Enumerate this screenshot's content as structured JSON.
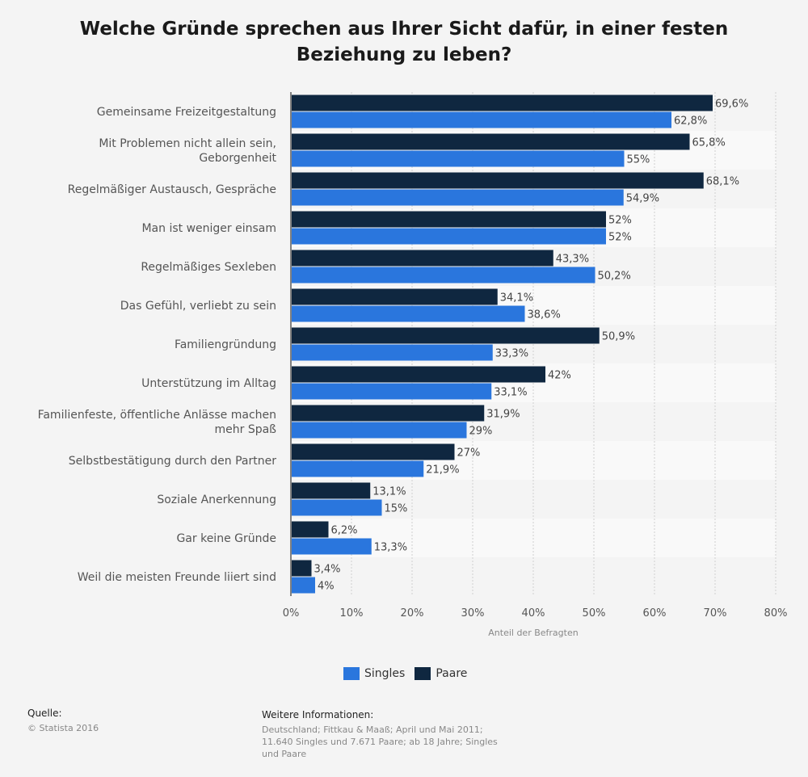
{
  "title": "Welche Gründe sprechen aus Ihrer Sicht dafür, in einer festen Beziehung zu leben?",
  "colors": {
    "singles": "#2a76dd",
    "paare": "#0f2740",
    "background": "#f4f4f4",
    "band": "#f9f9f9"
  },
  "chart_data": {
    "type": "bar",
    "orientation": "horizontal",
    "categories": [
      [
        "Gemeinsame Freizeitgestaltung"
      ],
      [
        "Mit Problemen nicht allein sein,",
        "Geborgenheit"
      ],
      [
        "Regelmäßiger Austausch, Gespräche"
      ],
      [
        "Man ist weniger einsam"
      ],
      [
        "Regelmäßiges Sexleben"
      ],
      [
        "Das Gefühl, verliebt zu sein"
      ],
      [
        "Familiengründung"
      ],
      [
        "Unterstützung im Alltag"
      ],
      [
        "Familienfeste, öffentliche Anlässe machen",
        "mehr Spaß"
      ],
      [
        "Selbstbestätigung durch den Partner"
      ],
      [
        "Soziale Anerkennung"
      ],
      [
        "Gar keine Gründe"
      ],
      [
        "Weil die meisten Freunde liiert sind"
      ]
    ],
    "series": [
      {
        "name": "Paare",
        "color": "#0f2740",
        "values": [
          69.6,
          65.8,
          68.1,
          52,
          43.3,
          34.1,
          50.9,
          42,
          31.9,
          27,
          13.1,
          6.2,
          3.4
        ],
        "labels": [
          "69,6%",
          "65,8%",
          "68,1%",
          "52%",
          "43,3%",
          "34,1%",
          "50,9%",
          "42%",
          "31,9%",
          "27%",
          "13,1%",
          "6,2%",
          "3,4%"
        ]
      },
      {
        "name": "Singles",
        "color": "#2a76dd",
        "values": [
          62.8,
          55,
          54.9,
          52,
          50.2,
          38.6,
          33.3,
          33.1,
          29,
          21.9,
          15,
          13.3,
          4
        ],
        "labels": [
          "62,8%",
          "55%",
          "54,9%",
          "52%",
          "50,2%",
          "38,6%",
          "33,3%",
          "33,1%",
          "29%",
          "21,9%",
          "15%",
          "13,3%",
          "4%"
        ]
      }
    ],
    "xlim": [
      0,
      80
    ],
    "xticks": [
      "0%",
      "10%",
      "20%",
      "30%",
      "40%",
      "50%",
      "60%",
      "70%",
      "80%"
    ],
    "xlabel": "Anteil der Befragten",
    "grid": true,
    "legend_placement": "bottom-center"
  },
  "legend": [
    {
      "name": "Singles",
      "color": "#2a76dd"
    },
    {
      "name": "Paare",
      "color": "#0f2740"
    }
  ],
  "source": {
    "heading": "Quelle:",
    "text": "© Statista 2016"
  },
  "info": {
    "heading": "Weitere Informationen:",
    "lines": [
      "Deutschland; Fittkau & Maaß; April und Mai 2011;",
      "11.640 Singles und 7.671 Paare; ab 18 Jahre; Singles",
      "und Paare"
    ]
  }
}
